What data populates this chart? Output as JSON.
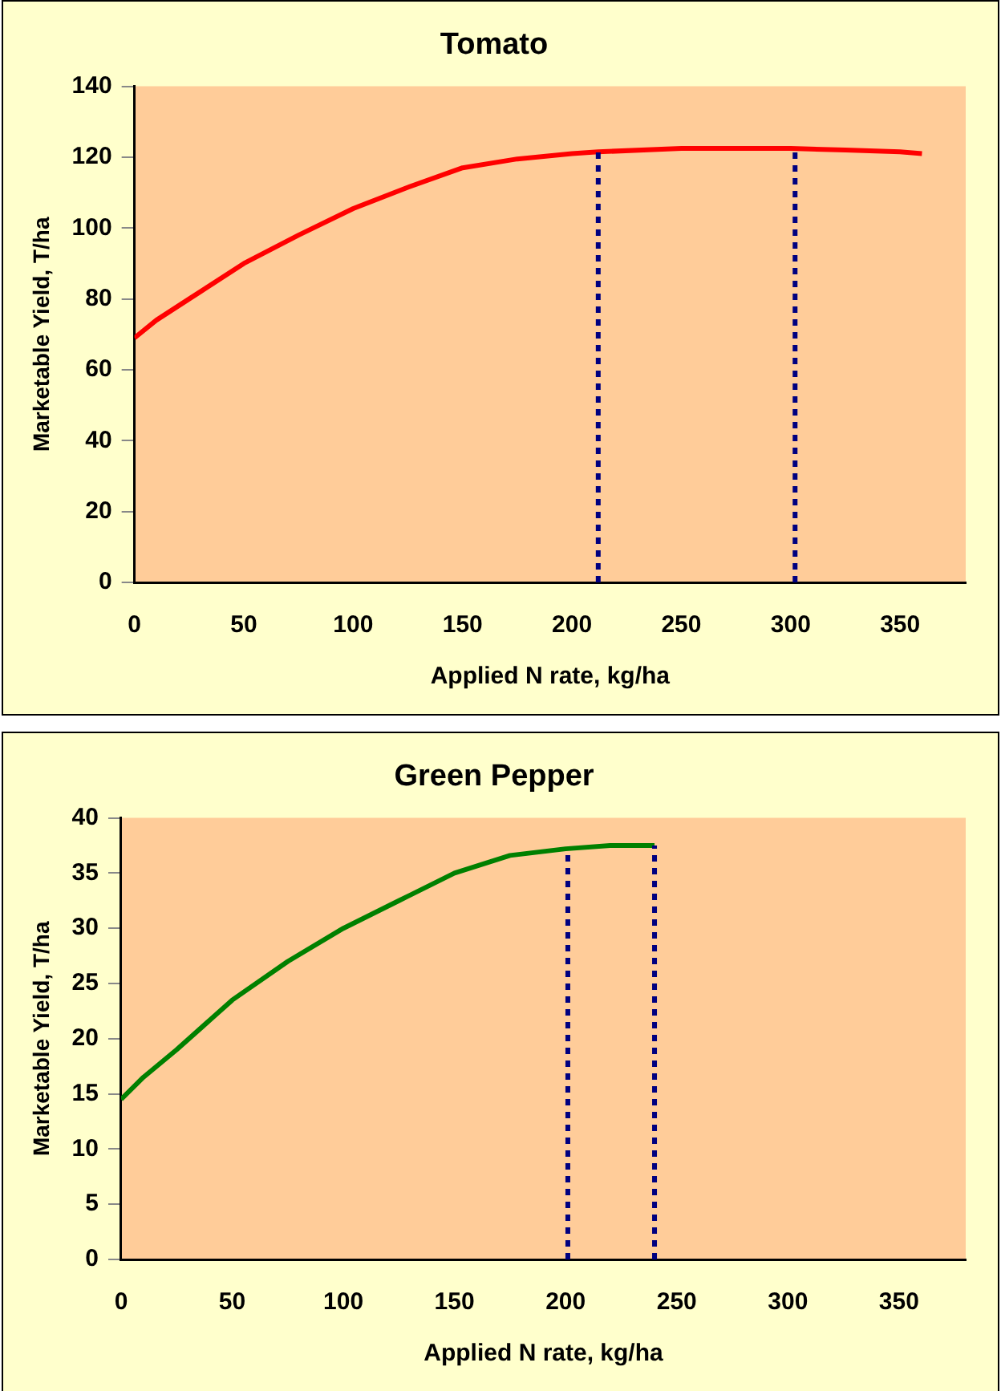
{
  "chart_data": [
    {
      "type": "line",
      "title": "Tomato",
      "xlabel": "Applied N rate, kg/ha",
      "ylabel": "Marketable Yield, T/ha",
      "x": [
        0,
        10,
        25,
        50,
        75,
        100,
        125,
        150,
        175,
        200,
        212,
        250,
        300,
        325,
        350,
        360
      ],
      "series": [
        {
          "color": "#ff0000",
          "values": [
            69,
            74,
            80,
            90,
            98,
            105.5,
            111.5,
            117,
            119.5,
            121,
            121.5,
            122.5,
            122.5,
            122,
            121.5,
            121
          ]
        }
      ],
      "xlim": [
        0,
        380
      ],
      "xticks": [
        0,
        50,
        100,
        150,
        200,
        250,
        300,
        350
      ],
      "ylim": [
        0,
        140
      ],
      "yticks": [
        0,
        20,
        40,
        60,
        80,
        100,
        120,
        140
      ],
      "marker": "none",
      "line_style": "solid",
      "ref_lines": [
        {
          "axis": "x",
          "value": 212,
          "color": "#000080",
          "line_style": "dotted"
        },
        {
          "axis": "x",
          "value": 302,
          "color": "#000080",
          "line_style": "dotted"
        }
      ]
    },
    {
      "type": "line",
      "title": "Green Pepper",
      "xlabel": "Applied N rate, kg/ha",
      "ylabel": "Marketable Yield, T/ha",
      "x": [
        0,
        10,
        25,
        50,
        75,
        100,
        125,
        150,
        175,
        200,
        220,
        240
      ],
      "series": [
        {
          "color": "#008000",
          "values": [
            14.5,
            16.5,
            19,
            23.5,
            27,
            30,
            32.5,
            35,
            36.6,
            37.2,
            37.5,
            37.5
          ]
        }
      ],
      "xlim": [
        0,
        380
      ],
      "xticks": [
        0,
        50,
        100,
        150,
        200,
        250,
        300,
        350
      ],
      "ylim": [
        0,
        40
      ],
      "yticks": [
        0,
        5,
        10,
        15,
        20,
        25,
        30,
        35,
        40
      ],
      "marker": "none",
      "line_style": "solid",
      "ref_lines": [
        {
          "axis": "x",
          "value": 201,
          "color": "#000080",
          "line_style": "dotted"
        },
        {
          "axis": "x",
          "value": 240,
          "color": "#000080",
          "line_style": "dotted"
        }
      ]
    }
  ]
}
